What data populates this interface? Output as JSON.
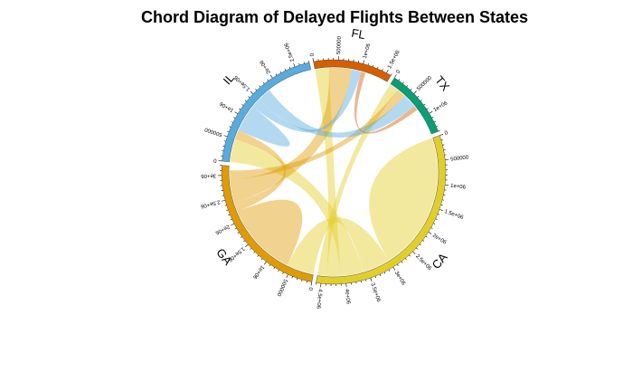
{
  "title": "Chord Diagram of Delayed Flights Between States",
  "chart_data": {
    "type": "chord",
    "sectors": [
      {
        "name": "CA",
        "color": "#E2CE29",
        "total": 4600000
      },
      {
        "name": "GA",
        "color": "#E09B04",
        "total": 3200000
      },
      {
        "name": "IL",
        "color": "#57ABDD",
        "total": 2800000
      },
      {
        "name": "FL",
        "color": "#D55E00",
        "total": 1600000
      },
      {
        "name": "TX",
        "color": "#099E73",
        "total": 1400000
      }
    ],
    "links": [
      {
        "from": "CA",
        "to": "CA",
        "value": 1500000
      },
      {
        "from": "CA",
        "to": "GA",
        "value": 600000
      },
      {
        "from": "CA",
        "to": "IL",
        "value": 500000
      },
      {
        "from": "CA",
        "to": "FL",
        "value": 300000
      },
      {
        "from": "CA",
        "to": "TX",
        "value": 200000
      },
      {
        "from": "GA",
        "to": "GA",
        "value": 800000
      },
      {
        "from": "GA",
        "to": "IL",
        "value": 200000
      },
      {
        "from": "GA",
        "to": "FL",
        "value": 500000
      },
      {
        "from": "GA",
        "to": "TX",
        "value": 200000
      },
      {
        "from": "IL",
        "to": "IL",
        "value": 300000
      },
      {
        "from": "IL",
        "to": "FL",
        "value": 200000
      },
      {
        "from": "IL",
        "to": "TX",
        "value": 300000
      },
      {
        "from": "FL",
        "to": "TX",
        "value": 100000
      }
    ]
  }
}
